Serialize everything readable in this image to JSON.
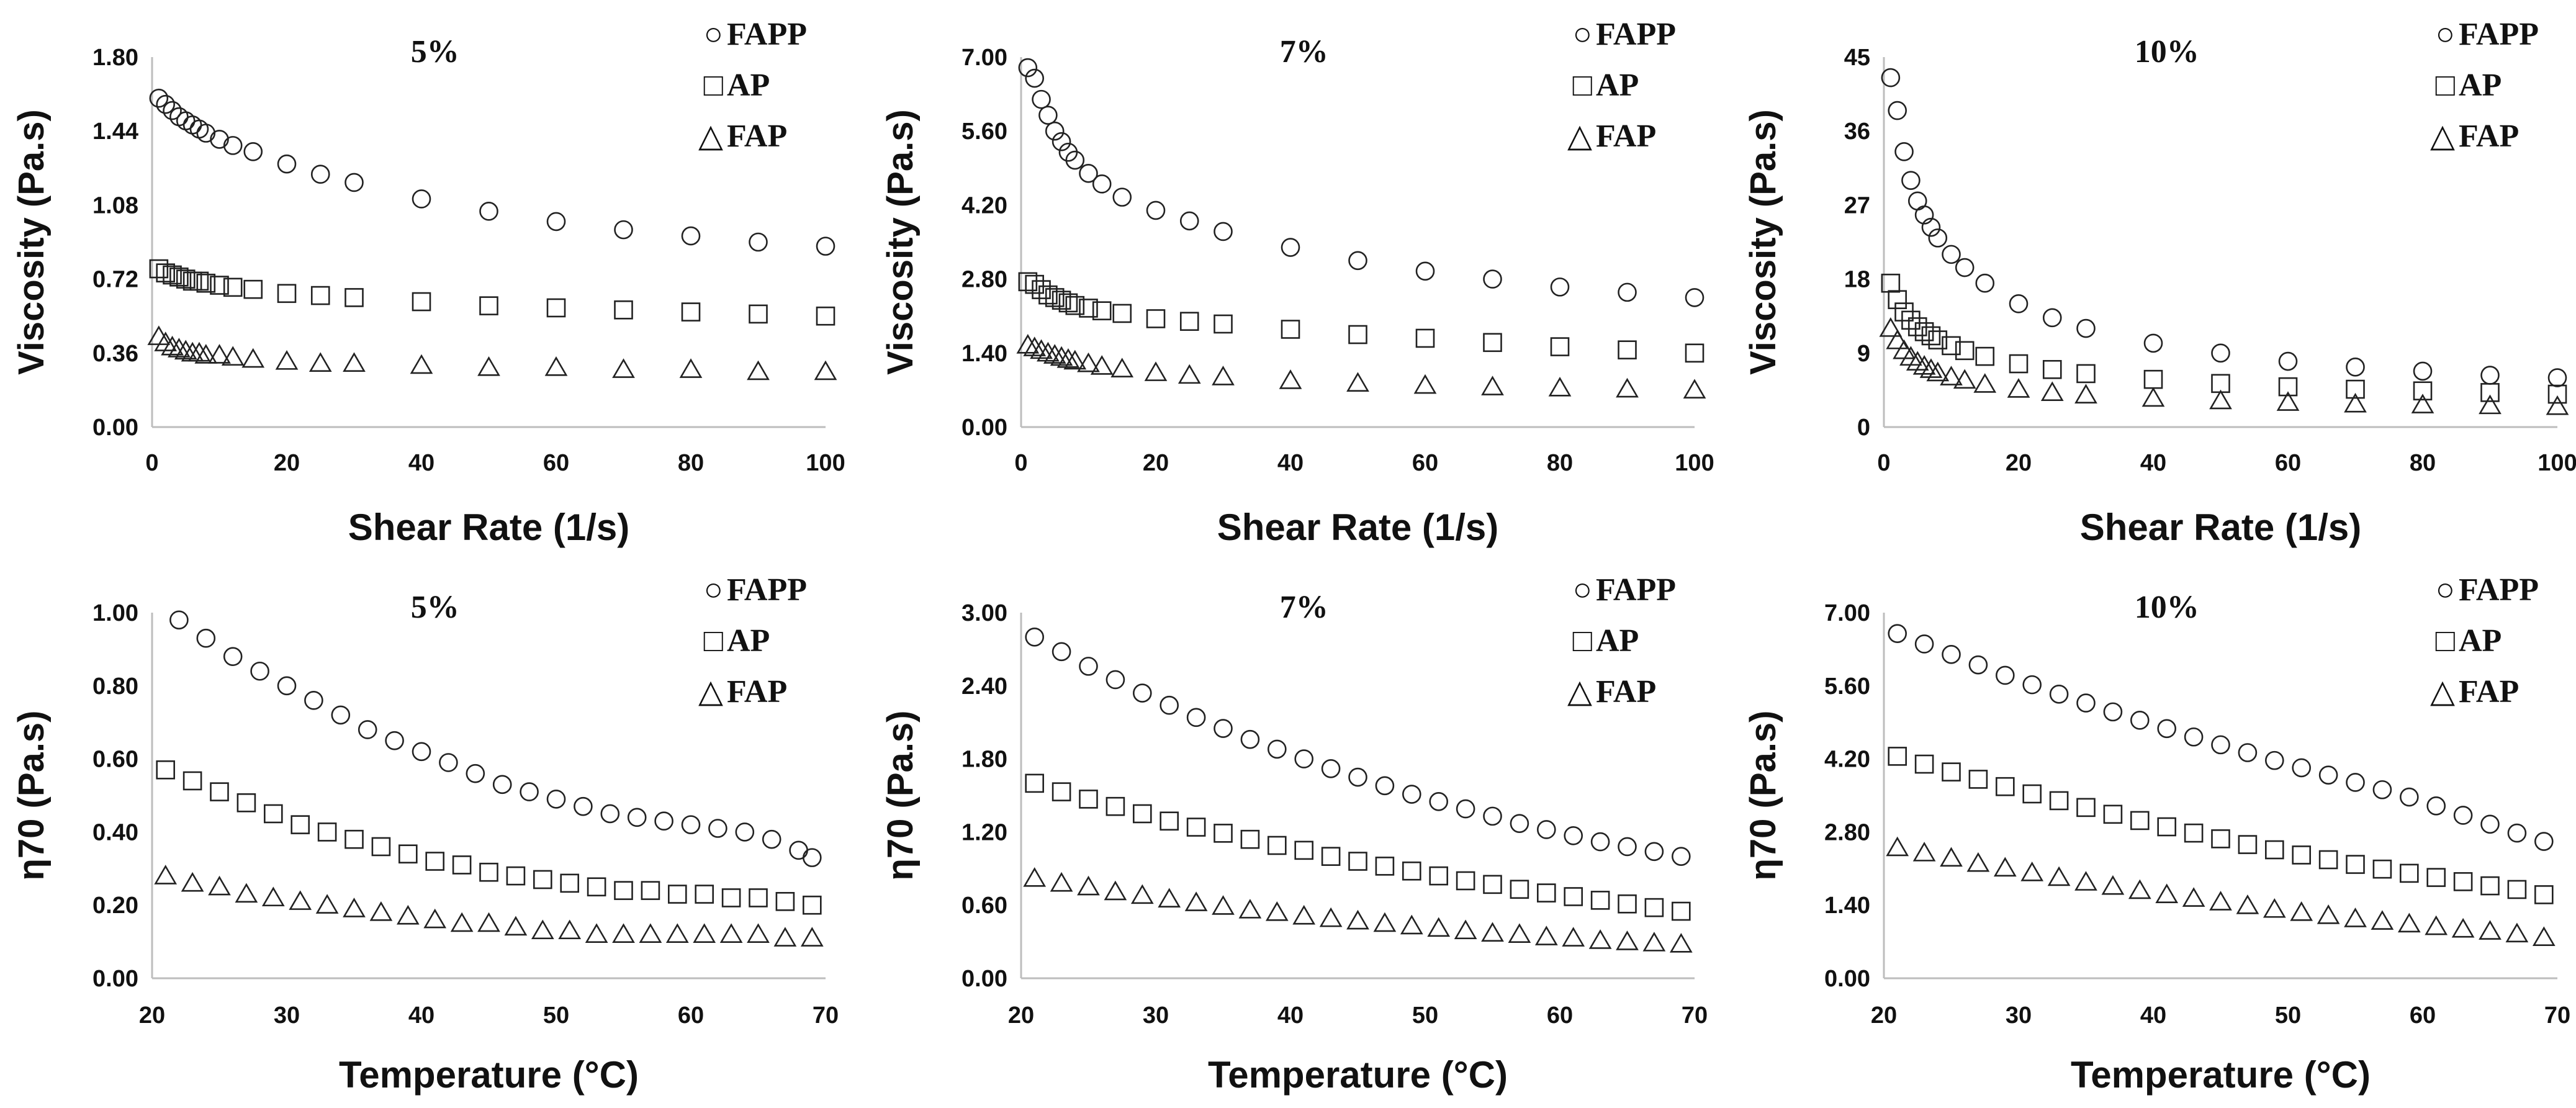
{
  "figure": {
    "legend_glyphs": [
      "○",
      "□",
      "△"
    ]
  },
  "chart_data": [
    {
      "type": "scatter",
      "title": "5%",
      "xlabel": "Shear Rate (1/s)",
      "ylabel": "Viscosity (Pa.s)",
      "xlim": [
        0,
        100
      ],
      "ylim": [
        0,
        1.8
      ],
      "xticks": [
        "0",
        "20",
        "40",
        "60",
        "80",
        "100"
      ],
      "yticks": [
        "0.00",
        "0.36",
        "0.72",
        "1.08",
        "1.44",
        "1.80"
      ],
      "grid": false,
      "legend": "top-right",
      "series": [
        {
          "name": "FAPP",
          "marker": "circle",
          "x": [
            1,
            2,
            3,
            4,
            5,
            6,
            7,
            8,
            10,
            12,
            15,
            20,
            25,
            30,
            40,
            50,
            60,
            70,
            80,
            90,
            100
          ],
          "y": [
            1.6,
            1.57,
            1.54,
            1.51,
            1.49,
            1.47,
            1.45,
            1.43,
            1.4,
            1.37,
            1.34,
            1.28,
            1.23,
            1.19,
            1.11,
            1.05,
            1.0,
            0.96,
            0.93,
            0.9,
            0.88
          ]
        },
        {
          "name": "AP",
          "marker": "square",
          "x": [
            1,
            2,
            3,
            4,
            5,
            6,
            7,
            8,
            10,
            12,
            15,
            20,
            25,
            30,
            40,
            50,
            60,
            70,
            80,
            90,
            100
          ],
          "y": [
            0.77,
            0.75,
            0.74,
            0.73,
            0.72,
            0.71,
            0.71,
            0.7,
            0.69,
            0.68,
            0.67,
            0.65,
            0.64,
            0.63,
            0.61,
            0.59,
            0.58,
            0.57,
            0.56,
            0.55,
            0.54
          ]
        },
        {
          "name": "FAP",
          "marker": "triangle",
          "x": [
            1,
            2,
            3,
            4,
            5,
            6,
            7,
            8,
            10,
            12,
            15,
            20,
            25,
            30,
            40,
            50,
            60,
            70,
            80,
            90,
            100
          ],
          "y": [
            0.44,
            0.41,
            0.39,
            0.38,
            0.37,
            0.36,
            0.36,
            0.35,
            0.35,
            0.34,
            0.33,
            0.32,
            0.31,
            0.31,
            0.3,
            0.29,
            0.29,
            0.28,
            0.28,
            0.27,
            0.27
          ]
        }
      ]
    },
    {
      "type": "scatter",
      "title": "7%",
      "xlabel": "Shear Rate (1/s)",
      "ylabel": "Viscosity (Pa.s)",
      "xlim": [
        0,
        100
      ],
      "ylim": [
        0,
        7
      ],
      "xticks": [
        "0",
        "20",
        "40",
        "60",
        "80",
        "100"
      ],
      "yticks": [
        "0.00",
        "1.40",
        "2.80",
        "4.20",
        "5.60",
        "7.00"
      ],
      "grid": false,
      "legend": "top-right",
      "series": [
        {
          "name": "FAPP",
          "marker": "circle",
          "x": [
            1,
            2,
            3,
            4,
            5,
            6,
            7,
            8,
            10,
            12,
            15,
            20,
            25,
            30,
            40,
            50,
            60,
            70,
            80,
            90,
            100
          ],
          "y": [
            6.8,
            6.6,
            6.2,
            5.9,
            5.6,
            5.4,
            5.2,
            5.05,
            4.8,
            4.6,
            4.35,
            4.1,
            3.9,
            3.7,
            3.4,
            3.15,
            2.95,
            2.8,
            2.65,
            2.55,
            2.45
          ]
        },
        {
          "name": "AP",
          "marker": "square",
          "x": [
            1,
            2,
            3,
            4,
            5,
            6,
            7,
            8,
            10,
            12,
            15,
            20,
            25,
            30,
            40,
            50,
            60,
            70,
            80,
            90,
            100
          ],
          "y": [
            2.75,
            2.7,
            2.6,
            2.5,
            2.45,
            2.4,
            2.35,
            2.3,
            2.25,
            2.2,
            2.15,
            2.05,
            2.0,
            1.95,
            1.85,
            1.75,
            1.68,
            1.6,
            1.52,
            1.46,
            1.4
          ]
        },
        {
          "name": "FAP",
          "marker": "triangle",
          "x": [
            1,
            2,
            3,
            4,
            5,
            6,
            7,
            8,
            10,
            12,
            15,
            20,
            25,
            30,
            40,
            50,
            60,
            70,
            80,
            90,
            100
          ],
          "y": [
            1.55,
            1.5,
            1.45,
            1.4,
            1.36,
            1.32,
            1.28,
            1.25,
            1.2,
            1.15,
            1.1,
            1.03,
            0.98,
            0.95,
            0.88,
            0.83,
            0.79,
            0.76,
            0.74,
            0.72,
            0.7
          ]
        }
      ]
    },
    {
      "type": "scatter",
      "title": "10%",
      "xlabel": "Shear Rate (1/s)",
      "ylabel": "Viscosity (Pa.s)",
      "xlim": [
        0,
        100
      ],
      "ylim": [
        0,
        45
      ],
      "xticks": [
        "0",
        "20",
        "40",
        "60",
        "80",
        "100"
      ],
      "yticks": [
        "0",
        "9",
        "18",
        "27",
        "36",
        "45"
      ],
      "grid": false,
      "legend": "top-right",
      "series": [
        {
          "name": "FAPP",
          "marker": "circle",
          "x": [
            1,
            2,
            3,
            4,
            5,
            6,
            7,
            8,
            10,
            12,
            15,
            20,
            25,
            30,
            40,
            50,
            60,
            70,
            80,
            90,
            100
          ],
          "y": [
            42.5,
            38.5,
            33.5,
            30.0,
            27.5,
            25.8,
            24.3,
            23.0,
            21.0,
            19.4,
            17.5,
            15.0,
            13.3,
            12.0,
            10.2,
            9.0,
            8.0,
            7.3,
            6.8,
            6.3,
            6.0
          ]
        },
        {
          "name": "AP",
          "marker": "square",
          "x": [
            1,
            2,
            3,
            4,
            5,
            6,
            7,
            8,
            10,
            12,
            15,
            20,
            25,
            30,
            40,
            50,
            60,
            70,
            80,
            90,
            100
          ],
          "y": [
            17.5,
            15.5,
            14.0,
            13.0,
            12.2,
            11.6,
            11.1,
            10.6,
            9.9,
            9.3,
            8.6,
            7.7,
            7.0,
            6.5,
            5.8,
            5.3,
            4.9,
            4.6,
            4.4,
            4.2,
            4.0
          ]
        },
        {
          "name": "FAP",
          "marker": "triangle",
          "x": [
            1,
            2,
            3,
            4,
            5,
            6,
            7,
            8,
            10,
            12,
            15,
            20,
            25,
            30,
            40,
            50,
            60,
            70,
            80,
            90,
            100
          ],
          "y": [
            12.0,
            10.5,
            9.3,
            8.5,
            7.9,
            7.4,
            7.0,
            6.6,
            6.1,
            5.7,
            5.2,
            4.6,
            4.2,
            3.9,
            3.5,
            3.2,
            3.0,
            2.8,
            2.7,
            2.6,
            2.5
          ]
        }
      ]
    },
    {
      "type": "scatter",
      "title": "5%",
      "xlabel": "Temperature (°C)",
      "ylabel": "η70  (Pa.s)",
      "xlim": [
        20,
        70
      ],
      "ylim": [
        0,
        1
      ],
      "xticks": [
        "20",
        "30",
        "40",
        "50",
        "60",
        "70"
      ],
      "yticks": [
        "0.00",
        "0.20",
        "0.40",
        "0.60",
        "0.80",
        "1.00"
      ],
      "grid": false,
      "legend": "top-right",
      "series": [
        {
          "name": "FAPP",
          "marker": "circle",
          "x": [
            22,
            24,
            26,
            28,
            30,
            32,
            34,
            36,
            38,
            40,
            42,
            44,
            46,
            48,
            50,
            52,
            54,
            56,
            58,
            60,
            62,
            64,
            66,
            68,
            69
          ],
          "y": [
            0.98,
            0.93,
            0.88,
            0.84,
            0.8,
            0.76,
            0.72,
            0.68,
            0.65,
            0.62,
            0.59,
            0.56,
            0.53,
            0.51,
            0.49,
            0.47,
            0.45,
            0.44,
            0.43,
            0.42,
            0.41,
            0.4,
            0.38,
            0.35,
            0.33
          ]
        },
        {
          "name": "AP",
          "marker": "square",
          "x": [
            21,
            23,
            25,
            27,
            29,
            31,
            33,
            35,
            37,
            39,
            41,
            43,
            45,
            47,
            49,
            51,
            53,
            55,
            57,
            59,
            61,
            63,
            65,
            67,
            69
          ],
          "y": [
            0.57,
            0.54,
            0.51,
            0.48,
            0.45,
            0.42,
            0.4,
            0.38,
            0.36,
            0.34,
            0.32,
            0.31,
            0.29,
            0.28,
            0.27,
            0.26,
            0.25,
            0.24,
            0.24,
            0.23,
            0.23,
            0.22,
            0.22,
            0.21,
            0.2
          ]
        },
        {
          "name": "FAP",
          "marker": "triangle",
          "x": [
            21,
            23,
            25,
            27,
            29,
            31,
            33,
            35,
            37,
            39,
            41,
            43,
            45,
            47,
            49,
            51,
            53,
            55,
            57,
            59,
            61,
            63,
            65,
            67,
            69
          ],
          "y": [
            0.28,
            0.26,
            0.25,
            0.23,
            0.22,
            0.21,
            0.2,
            0.19,
            0.18,
            0.17,
            0.16,
            0.15,
            0.15,
            0.14,
            0.13,
            0.13,
            0.12,
            0.12,
            0.12,
            0.12,
            0.12,
            0.12,
            0.12,
            0.11,
            0.11
          ]
        }
      ]
    },
    {
      "type": "scatter",
      "title": "7%",
      "xlabel": "Temperature (°C)",
      "ylabel": "η70  (Pa.s)",
      "xlim": [
        20,
        70
      ],
      "ylim": [
        0,
        3
      ],
      "xticks": [
        "20",
        "30",
        "40",
        "50",
        "60",
        "70"
      ],
      "yticks": [
        "0.00",
        "0.60",
        "1.20",
        "1.80",
        "2.40",
        "3.00"
      ],
      "grid": false,
      "legend": "top-right",
      "series": [
        {
          "name": "FAPP",
          "marker": "circle",
          "x": [
            21,
            23,
            25,
            27,
            29,
            31,
            33,
            35,
            37,
            39,
            41,
            43,
            45,
            47,
            49,
            51,
            53,
            55,
            57,
            59,
            61,
            63,
            65,
            67,
            69
          ],
          "y": [
            2.8,
            2.68,
            2.56,
            2.45,
            2.34,
            2.24,
            2.14,
            2.05,
            1.96,
            1.88,
            1.8,
            1.72,
            1.65,
            1.58,
            1.51,
            1.45,
            1.39,
            1.33,
            1.27,
            1.22,
            1.17,
            1.12,
            1.08,
            1.04,
            1.0
          ]
        },
        {
          "name": "AP",
          "marker": "square",
          "x": [
            21,
            23,
            25,
            27,
            29,
            31,
            33,
            35,
            37,
            39,
            41,
            43,
            45,
            47,
            49,
            51,
            53,
            55,
            57,
            59,
            61,
            63,
            65,
            67,
            69
          ],
          "y": [
            1.6,
            1.53,
            1.47,
            1.41,
            1.35,
            1.29,
            1.24,
            1.19,
            1.14,
            1.09,
            1.05,
            1.0,
            0.96,
            0.92,
            0.88,
            0.84,
            0.8,
            0.77,
            0.73,
            0.7,
            0.67,
            0.64,
            0.61,
            0.58,
            0.55
          ]
        },
        {
          "name": "FAP",
          "marker": "triangle",
          "x": [
            21,
            23,
            25,
            27,
            29,
            31,
            33,
            35,
            37,
            39,
            41,
            43,
            45,
            47,
            49,
            51,
            53,
            55,
            57,
            59,
            61,
            63,
            65,
            67,
            69
          ],
          "y": [
            0.82,
            0.78,
            0.75,
            0.71,
            0.68,
            0.65,
            0.62,
            0.59,
            0.56,
            0.54,
            0.51,
            0.49,
            0.47,
            0.45,
            0.43,
            0.41,
            0.39,
            0.37,
            0.36,
            0.34,
            0.33,
            0.31,
            0.3,
            0.29,
            0.28
          ]
        }
      ]
    },
    {
      "type": "scatter",
      "title": "10%",
      "xlabel": "Temperature (°C)",
      "ylabel": "η70  (Pa.s)",
      "xlim": [
        20,
        70
      ],
      "ylim": [
        0,
        7
      ],
      "xticks": [
        "20",
        "30",
        "40",
        "50",
        "60",
        "70"
      ],
      "yticks": [
        "0.00",
        "1.40",
        "2.80",
        "4.20",
        "5.60",
        "7.00"
      ],
      "grid": false,
      "legend": "top-right",
      "series": [
        {
          "name": "FAPP",
          "marker": "circle",
          "x": [
            21,
            23,
            25,
            27,
            29,
            31,
            33,
            35,
            37,
            39,
            41,
            43,
            45,
            47,
            49,
            51,
            53,
            55,
            57,
            59,
            61,
            63,
            65,
            67,
            69
          ],
          "y": [
            6.6,
            6.4,
            6.2,
            6.0,
            5.8,
            5.62,
            5.44,
            5.27,
            5.1,
            4.94,
            4.78,
            4.62,
            4.47,
            4.32,
            4.17,
            4.03,
            3.89,
            3.75,
            3.61,
            3.47,
            3.3,
            3.12,
            2.95,
            2.78,
            2.62
          ]
        },
        {
          "name": "AP",
          "marker": "square",
          "x": [
            21,
            23,
            25,
            27,
            29,
            31,
            33,
            35,
            37,
            39,
            41,
            43,
            45,
            47,
            49,
            51,
            53,
            55,
            57,
            59,
            61,
            63,
            65,
            67,
            69
          ],
          "y": [
            4.25,
            4.1,
            3.95,
            3.81,
            3.67,
            3.53,
            3.4,
            3.27,
            3.14,
            3.02,
            2.9,
            2.78,
            2.67,
            2.56,
            2.46,
            2.36,
            2.27,
            2.18,
            2.09,
            2.01,
            1.93,
            1.85,
            1.77,
            1.7,
            1.6
          ]
        },
        {
          "name": "FAP",
          "marker": "triangle",
          "x": [
            21,
            23,
            25,
            27,
            29,
            31,
            33,
            35,
            37,
            39,
            41,
            43,
            45,
            47,
            49,
            51,
            53,
            55,
            57,
            59,
            61,
            63,
            65,
            67,
            69
          ],
          "y": [
            2.5,
            2.4,
            2.3,
            2.2,
            2.11,
            2.02,
            1.93,
            1.84,
            1.76,
            1.68,
            1.6,
            1.53,
            1.46,
            1.39,
            1.32,
            1.26,
            1.2,
            1.14,
            1.09,
            1.04,
            0.99,
            0.94,
            0.9,
            0.85,
            0.78
          ]
        }
      ]
    }
  ]
}
